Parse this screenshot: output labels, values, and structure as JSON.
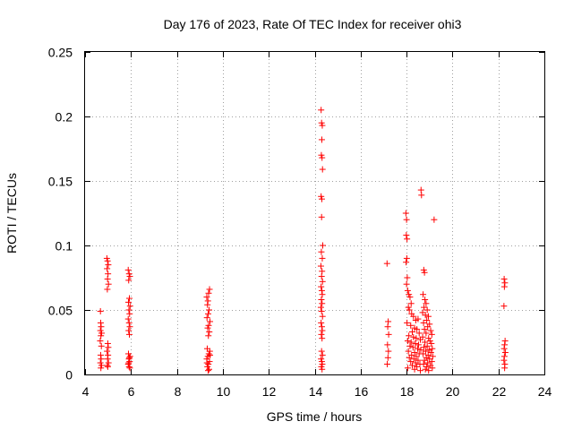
{
  "chart_data": {
    "type": "scatter",
    "title": "Day 176 of 2023, Rate Of TEC Index for receiver ohi3",
    "xlabel": "GPS time / hours",
    "ylabel": "ROTI / TECUs",
    "xlim": [
      4,
      24
    ],
    "ylim": [
      0,
      0.25
    ],
    "x_ticks": [
      "4",
      "6",
      "8",
      "10",
      "12",
      "14",
      "16",
      "18",
      "20",
      "22",
      "24"
    ],
    "y_ticks": [
      "0",
      "0.05",
      "0.1",
      "0.15",
      "0.2",
      "0.25"
    ],
    "grid": true,
    "marker": "plus",
    "color": "#ff0000",
    "series": [
      {
        "points": [
          [
            4.67,
            0.049
          ],
          [
            4.68,
            0.04
          ],
          [
            4.7,
            0.037
          ],
          [
            4.67,
            0.034
          ],
          [
            4.72,
            0.032
          ],
          [
            4.69,
            0.03
          ],
          [
            4.66,
            0.026
          ],
          [
            4.71,
            0.022
          ],
          [
            4.68,
            0.015
          ],
          [
            4.7,
            0.012
          ],
          [
            4.67,
            0.009
          ],
          [
            4.72,
            0.007
          ],
          [
            4.69,
            0.005
          ],
          [
            4.95,
            0.09
          ],
          [
            4.98,
            0.088
          ],
          [
            5.01,
            0.085
          ],
          [
            4.96,
            0.082
          ],
          [
            5.0,
            0.078
          ],
          [
            4.98,
            0.074
          ],
          [
            5.02,
            0.07
          ],
          [
            4.97,
            0.066
          ],
          [
            4.99,
            0.024
          ],
          [
            5.01,
            0.021
          ],
          [
            4.96,
            0.018
          ],
          [
            5.0,
            0.015
          ],
          [
            4.98,
            0.012
          ],
          [
            5.02,
            0.009
          ],
          [
            4.97,
            0.007
          ],
          [
            4.99,
            0.006
          ],
          [
            5.88,
            0.081
          ],
          [
            5.92,
            0.078
          ],
          [
            5.95,
            0.076
          ],
          [
            5.9,
            0.073
          ],
          [
            5.93,
            0.059
          ],
          [
            5.89,
            0.056
          ],
          [
            5.96,
            0.053
          ],
          [
            5.91,
            0.05
          ],
          [
            5.94,
            0.047
          ],
          [
            5.88,
            0.043
          ],
          [
            5.92,
            0.04
          ],
          [
            5.95,
            0.037
          ],
          [
            5.9,
            0.034
          ],
          [
            5.93,
            0.031
          ],
          [
            5.89,
            0.016
          ],
          [
            5.96,
            0.014
          ],
          [
            5.91,
            0.012
          ],
          [
            5.94,
            0.01
          ],
          [
            5.88,
            0.008
          ],
          [
            5.92,
            0.006
          ],
          [
            5.95,
            0.005
          ],
          [
            5.9,
            0.009
          ],
          [
            5.93,
            0.013
          ],
          [
            9.3,
            0.06
          ],
          [
            9.35,
            0.057
          ],
          [
            9.42,
            0.066
          ],
          [
            9.38,
            0.063
          ],
          [
            9.33,
            0.054
          ],
          [
            9.4,
            0.05
          ],
          [
            9.36,
            0.047
          ],
          [
            9.31,
            0.044
          ],
          [
            9.44,
            0.041
          ],
          [
            9.38,
            0.038
          ],
          [
            9.34,
            0.036
          ],
          [
            9.41,
            0.033
          ],
          [
            9.37,
            0.03
          ],
          [
            9.32,
            0.02
          ],
          [
            9.43,
            0.018
          ],
          [
            9.39,
            0.016
          ],
          [
            9.35,
            0.014
          ],
          [
            9.3,
            0.012
          ],
          [
            9.42,
            0.01
          ],
          [
            9.37,
            0.008
          ],
          [
            9.33,
            0.006
          ],
          [
            9.4,
            0.004
          ],
          [
            9.36,
            0.003
          ],
          [
            9.44,
            0.015
          ],
          [
            9.31,
            0.009
          ],
          [
            14.28,
            0.205
          ],
          [
            14.3,
            0.195
          ],
          [
            14.33,
            0.193
          ],
          [
            14.31,
            0.182
          ],
          [
            14.29,
            0.17
          ],
          [
            14.32,
            0.168
          ],
          [
            14.34,
            0.159
          ],
          [
            14.28,
            0.138
          ],
          [
            14.31,
            0.136
          ],
          [
            14.3,
            0.122
          ],
          [
            14.35,
            0.1
          ],
          [
            14.29,
            0.095
          ],
          [
            14.33,
            0.09
          ],
          [
            14.27,
            0.084
          ],
          [
            14.32,
            0.08
          ],
          [
            14.3,
            0.076
          ],
          [
            14.34,
            0.072
          ],
          [
            14.28,
            0.068
          ],
          [
            14.31,
            0.065
          ],
          [
            14.33,
            0.062
          ],
          [
            14.29,
            0.058
          ],
          [
            14.32,
            0.055
          ],
          [
            14.27,
            0.052
          ],
          [
            14.3,
            0.049
          ],
          [
            14.34,
            0.045
          ],
          [
            14.28,
            0.04
          ],
          [
            14.31,
            0.037
          ],
          [
            14.33,
            0.034
          ],
          [
            14.29,
            0.031
          ],
          [
            14.32,
            0.028
          ],
          [
            14.3,
            0.018
          ],
          [
            14.34,
            0.015
          ],
          [
            14.28,
            0.012
          ],
          [
            14.31,
            0.01
          ],
          [
            14.33,
            0.008
          ],
          [
            14.29,
            0.006
          ],
          [
            14.32,
            0.004
          ],
          [
            17.15,
            0.086
          ],
          [
            17.2,
            0.041
          ],
          [
            17.18,
            0.037
          ],
          [
            17.22,
            0.031
          ],
          [
            17.17,
            0.023
          ],
          [
            17.21,
            0.018
          ],
          [
            17.19,
            0.013
          ],
          [
            17.16,
            0.008
          ],
          [
            17.97,
            0.125
          ],
          [
            18.0,
            0.12
          ],
          [
            17.99,
            0.108
          ],
          [
            18.02,
            0.105
          ],
          [
            18.01,
            0.09
          ],
          [
            17.98,
            0.087
          ],
          [
            18.03,
            0.075
          ],
          [
            18.0,
            0.07
          ],
          [
            18.05,
            0.065
          ],
          [
            18.1,
            0.062
          ],
          [
            18.15,
            0.06
          ],
          [
            18.2,
            0.055
          ],
          [
            18.08,
            0.052
          ],
          [
            18.12,
            0.05
          ],
          [
            18.22,
            0.047
          ],
          [
            18.3,
            0.045
          ],
          [
            18.4,
            0.042
          ],
          [
            18.5,
            0.043
          ],
          [
            18.02,
            0.04
          ],
          [
            18.18,
            0.038
          ],
          [
            18.35,
            0.036
          ],
          [
            18.45,
            0.035
          ],
          [
            18.25,
            0.033
          ],
          [
            18.55,
            0.032
          ],
          [
            18.1,
            0.03
          ],
          [
            18.3,
            0.029
          ],
          [
            18.42,
            0.028
          ],
          [
            18.6,
            0.027
          ],
          [
            18.05,
            0.026
          ],
          [
            18.2,
            0.025
          ],
          [
            18.38,
            0.024
          ],
          [
            18.52,
            0.023
          ],
          [
            18.15,
            0.022
          ],
          [
            18.28,
            0.021
          ],
          [
            18.48,
            0.02
          ],
          [
            18.62,
            0.019
          ],
          [
            18.08,
            0.018
          ],
          [
            18.35,
            0.017
          ],
          [
            18.55,
            0.016
          ],
          [
            18.22,
            0.015
          ],
          [
            18.42,
            0.014
          ],
          [
            18.12,
            0.013
          ],
          [
            18.32,
            0.012
          ],
          [
            18.5,
            0.011
          ],
          [
            18.18,
            0.01
          ],
          [
            18.4,
            0.009
          ],
          [
            18.58,
            0.008
          ],
          [
            18.25,
            0.007
          ],
          [
            18.45,
            0.006
          ],
          [
            18.05,
            0.005
          ],
          [
            18.35,
            0.004
          ],
          [
            18.6,
            0.003
          ],
          [
            18.63,
            0.143
          ],
          [
            18.65,
            0.139
          ],
          [
            18.75,
            0.081
          ],
          [
            18.78,
            0.079
          ],
          [
            18.72,
            0.062
          ],
          [
            18.8,
            0.058
          ],
          [
            18.85,
            0.055
          ],
          [
            18.76,
            0.052
          ],
          [
            18.9,
            0.05
          ],
          [
            18.7,
            0.048
          ],
          [
            18.82,
            0.046
          ],
          [
            18.95,
            0.045
          ],
          [
            18.88,
            0.042
          ],
          [
            18.74,
            0.04
          ],
          [
            19.0,
            0.039
          ],
          [
            18.92,
            0.037
          ],
          [
            18.78,
            0.035
          ],
          [
            19.05,
            0.034
          ],
          [
            18.85,
            0.032
          ],
          [
            19.1,
            0.031
          ],
          [
            18.7,
            0.029
          ],
          [
            18.96,
            0.028
          ],
          [
            19.02,
            0.026
          ],
          [
            18.8,
            0.025
          ],
          [
            19.08,
            0.024
          ],
          [
            18.9,
            0.022
          ],
          [
            18.75,
            0.021
          ],
          [
            19.12,
            0.02
          ],
          [
            18.98,
            0.019
          ],
          [
            18.83,
            0.018
          ],
          [
            19.06,
            0.017
          ],
          [
            18.72,
            0.016
          ],
          [
            18.94,
            0.015
          ],
          [
            19.14,
            0.014
          ],
          [
            18.86,
            0.013
          ],
          [
            19.0,
            0.012
          ],
          [
            18.78,
            0.011
          ],
          [
            19.1,
            0.01
          ],
          [
            18.92,
            0.009
          ],
          [
            18.74,
            0.008
          ],
          [
            19.04,
            0.007
          ],
          [
            18.88,
            0.006
          ],
          [
            19.12,
            0.005
          ],
          [
            18.82,
            0.004
          ],
          [
            18.96,
            0.003
          ],
          [
            19.2,
            0.12
          ],
          [
            22.25,
            0.074
          ],
          [
            22.28,
            0.071
          ],
          [
            22.26,
            0.068
          ],
          [
            22.24,
            0.053
          ],
          [
            22.29,
            0.026
          ],
          [
            22.27,
            0.023
          ],
          [
            22.25,
            0.02
          ],
          [
            22.3,
            0.017
          ],
          [
            22.26,
            0.014
          ],
          [
            22.24,
            0.011
          ],
          [
            22.28,
            0.008
          ],
          [
            22.27,
            0.005
          ]
        ]
      }
    ]
  }
}
